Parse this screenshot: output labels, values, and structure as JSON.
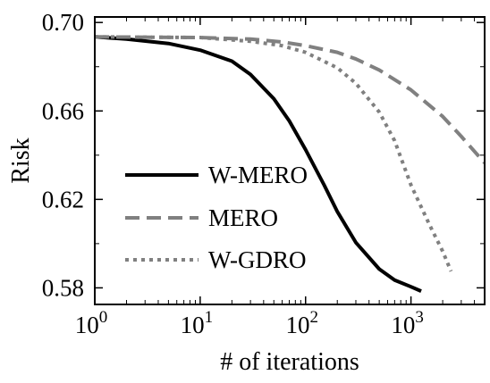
{
  "chart_data": {
    "type": "line",
    "xlabel": "# of iterations",
    "ylabel": "Risk",
    "xscale": "log",
    "xlim": [
      1,
      5000
    ],
    "ylim": [
      0.5725,
      0.7025
    ],
    "grid": false,
    "legend_position": "lower-left",
    "x_ticks": [
      {
        "value": 1,
        "base": "10",
        "exp": "0"
      },
      {
        "value": 10,
        "base": "10",
        "exp": "1"
      },
      {
        "value": 100,
        "base": "10",
        "exp": "2"
      },
      {
        "value": 1000,
        "base": "10",
        "exp": "3"
      }
    ],
    "y_ticks": [
      {
        "value": 0.58,
        "label": "0.58"
      },
      {
        "value": 0.62,
        "label": "0.62"
      },
      {
        "value": 0.66,
        "label": "0.66"
      },
      {
        "value": 0.7,
        "label": "0.70"
      }
    ],
    "series": [
      {
        "name": "W-MERO",
        "color": "#000000",
        "style": "solid",
        "points": [
          [
            1,
            0.6935
          ],
          [
            2,
            0.6925
          ],
          [
            5,
            0.6905
          ],
          [
            10,
            0.6875
          ],
          [
            20,
            0.6825
          ],
          [
            30,
            0.6765
          ],
          [
            50,
            0.6655
          ],
          [
            70,
            0.6555
          ],
          [
            100,
            0.6425
          ],
          [
            150,
            0.6265
          ],
          [
            200,
            0.6145
          ],
          [
            300,
            0.6005
          ],
          [
            500,
            0.5885
          ],
          [
            700,
            0.5835
          ],
          [
            1000,
            0.5805
          ],
          [
            1250,
            0.5785
          ]
        ]
      },
      {
        "name": "MERO",
        "color": "#808080",
        "style": "dashed",
        "points": [
          [
            1,
            0.6935
          ],
          [
            10,
            0.6932
          ],
          [
            30,
            0.6925
          ],
          [
            60,
            0.6912
          ],
          [
            100,
            0.6895
          ],
          [
            200,
            0.6865
          ],
          [
            300,
            0.6835
          ],
          [
            500,
            0.6785
          ],
          [
            1000,
            0.6695
          ],
          [
            2000,
            0.6575
          ],
          [
            3000,
            0.6485
          ],
          [
            5000,
            0.6365
          ]
        ]
      },
      {
        "name": "W-GDRO",
        "color": "#808080",
        "style": "dotted",
        "points": [
          [
            1,
            0.6935
          ],
          [
            10,
            0.6932
          ],
          [
            30,
            0.6915
          ],
          [
            60,
            0.6895
          ],
          [
            100,
            0.6865
          ],
          [
            200,
            0.6795
          ],
          [
            300,
            0.6725
          ],
          [
            500,
            0.6595
          ],
          [
            700,
            0.6465
          ],
          [
            1000,
            0.6265
          ],
          [
            1500,
            0.6085
          ],
          [
            2000,
            0.5965
          ],
          [
            2400,
            0.5875
          ]
        ]
      }
    ]
  }
}
